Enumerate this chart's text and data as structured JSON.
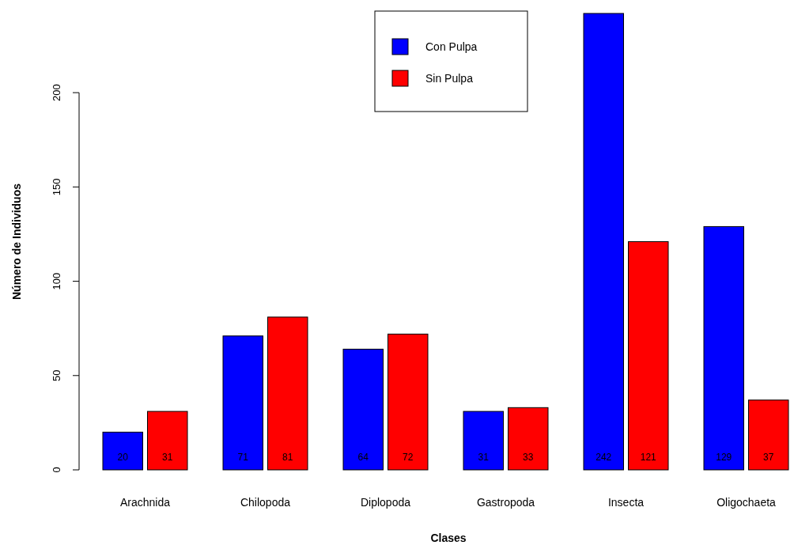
{
  "chart_data": {
    "type": "bar",
    "xlabel": "Clases",
    "ylabel": "Número de Individuos",
    "categories": [
      "Arachnida",
      "Chilopoda",
      "Diplopoda",
      "Gastropoda",
      "Insecta",
      "Oligochaeta"
    ],
    "series": [
      {
        "name": "Con Pulpa",
        "color": "#0000ff",
        "values": [
          20,
          71,
          64,
          31,
          242,
          129
        ]
      },
      {
        "name": "Sin Pulpa",
        "color": "#ff0000",
        "values": [
          31,
          81,
          72,
          33,
          121,
          37
        ]
      }
    ],
    "ylim": [
      0,
      242
    ],
    "yticks": [
      0,
      50,
      100,
      150,
      200
    ],
    "data_labels": true,
    "legend": "top",
    "grid": false
  }
}
